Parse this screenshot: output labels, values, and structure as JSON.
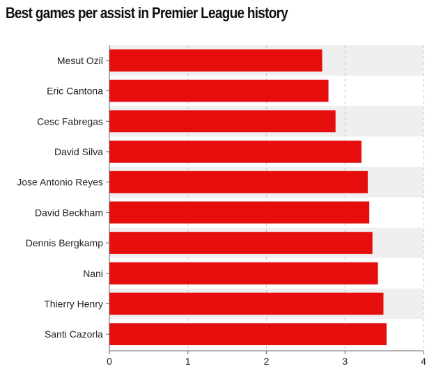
{
  "chart_data": {
    "type": "bar",
    "orientation": "horizontal",
    "title": "Best games per assist in Premier League history",
    "categories": [
      "Mesut Ozil",
      "Eric Cantona",
      "Cesc Fabregas",
      "David Silva",
      "Jose Antonio Reyes",
      "David Beckham",
      "Dennis Bergkamp",
      "Nani",
      "Thierry Henry",
      "Santi Cazorla"
    ],
    "values": [
      2.71,
      2.79,
      2.88,
      3.21,
      3.29,
      3.31,
      3.35,
      3.42,
      3.49,
      3.53
    ],
    "xlim": [
      0,
      4
    ],
    "xticks": [
      "0",
      "1",
      "2",
      "3",
      "4"
    ],
    "xlabel": "",
    "ylabel": "",
    "grid": true,
    "legend": "none",
    "colors": {
      "bar": "#e60d0d",
      "band_alt": "#efefef",
      "gridline": "#c8c8c8"
    }
  }
}
